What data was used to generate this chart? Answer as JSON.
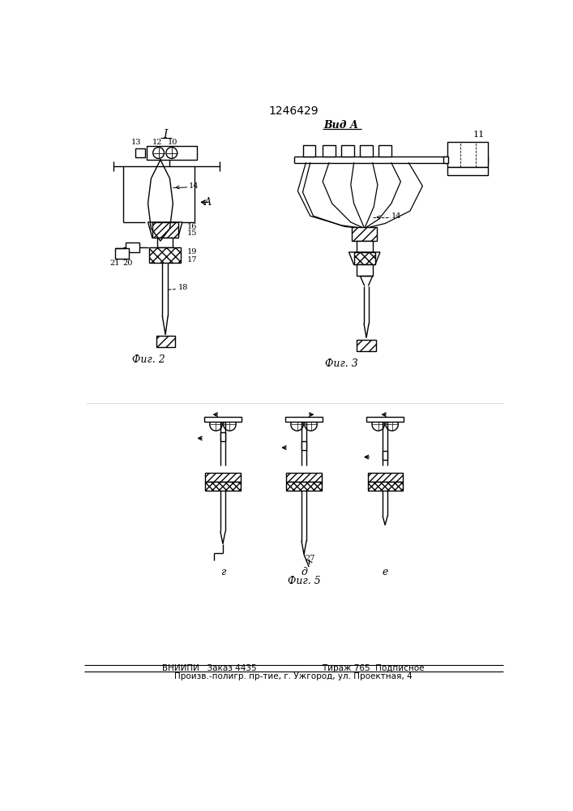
{
  "title": "1246429",
  "title_fontsize": 10,
  "footer_line1": "ВНИИПИ   Заказ 4435                         Тираж 765  Подписное",
  "footer_line2": "Произв.-полигр. пр-тие, г. Ужгород, ул. Проектная, 4",
  "footer_fontsize": 7.5,
  "fig2_label": "Фиг. 2",
  "fig3_label": "Фиг. 3",
  "fig5_label": "Фиг. 5",
  "vida_label": "Вид А",
  "bg_color": "#ffffff",
  "line_color": "#000000",
  "lw": 1.0
}
